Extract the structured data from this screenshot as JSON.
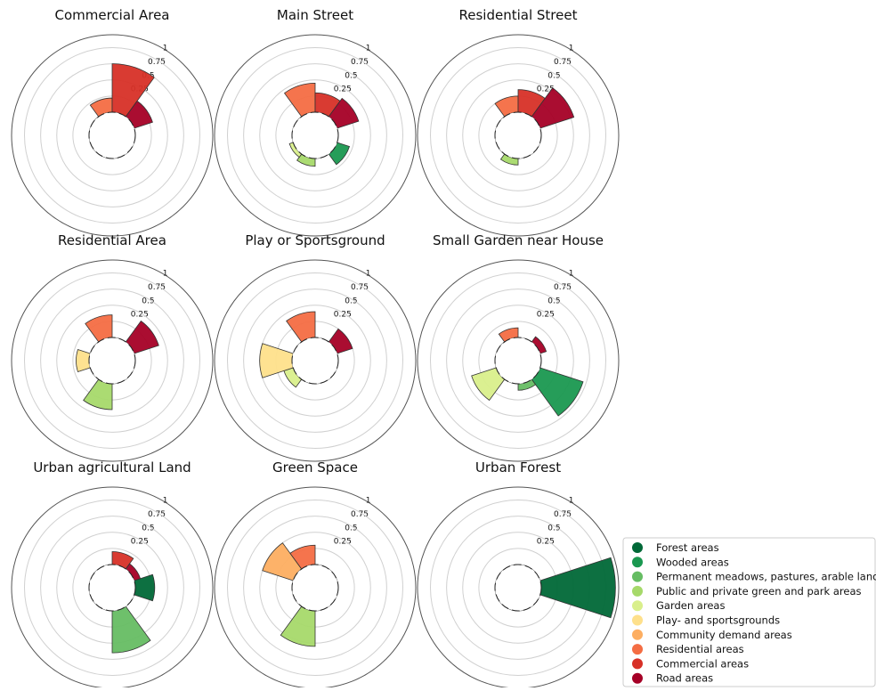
{
  "chart_data": [
    {
      "type": "polar_bar",
      "title": "Commercial Area",
      "values": [
        0,
        0,
        0,
        0,
        0,
        0,
        0,
        0.22,
        0.75,
        0.3
      ],
      "rlim": [
        0,
        1.2
      ],
      "rticks": [
        0.25,
        0.5,
        0.75,
        1
      ]
    },
    {
      "type": "polar_bar",
      "title": "Main Street",
      "values": [
        0,
        0.2,
        0,
        0.12,
        0.06,
        0,
        0,
        0.45,
        0.3,
        0.35
      ],
      "rlim": [
        0,
        1.2
      ],
      "rticks": [
        0.25,
        0.5,
        0.75,
        1
      ]
    },
    {
      "type": "polar_bar",
      "title": "Residential Street",
      "values": [
        0,
        0,
        0,
        0.1,
        0,
        0,
        0,
        0.25,
        0.35,
        0.55
      ],
      "rlim": [
        0,
        1.2
      ],
      "rticks": [
        0.25,
        0.5,
        0.75,
        1
      ]
    },
    {
      "type": "polar_bar",
      "title": "Residential Area",
      "values": [
        0,
        0,
        0,
        0.4,
        0,
        0.2,
        0,
        0.35,
        0,
        0.4
      ],
      "rlim": [
        0,
        1.2
      ],
      "rticks": [
        0.25,
        0.5,
        0.75,
        1
      ]
    },
    {
      "type": "polar_bar",
      "title": "Play or Sportsground",
      "values": [
        0,
        0,
        0,
        0,
        0.15,
        0.5,
        0,
        0.4,
        0,
        0.25
      ],
      "rlim": [
        0,
        1.2
      ],
      "rticks": [
        0.25,
        0.5,
        0.75,
        1
      ]
    },
    {
      "type": "polar_bar",
      "title": "Small Garden near House",
      "values": [
        0,
        0.7,
        0.1,
        0,
        0.4,
        0,
        0,
        0.15,
        0,
        0.1
      ],
      "rlim": [
        0,
        1.2
      ],
      "rticks": [
        0.25,
        0.5,
        0.75,
        1
      ]
    },
    {
      "type": "polar_bar",
      "title": "Urban agricultural Land",
      "values": [
        0.3,
        0,
        0.65,
        0,
        0,
        0,
        0,
        0,
        0.2,
        0.1
      ],
      "rlim": [
        0,
        1.2
      ],
      "rticks": [
        0.25,
        0.5,
        0.75,
        1
      ]
    },
    {
      "type": "polar_bar",
      "title": "Green Space",
      "values": [
        0,
        0,
        0,
        0.55,
        0,
        0,
        0.5,
        0.3,
        0,
        0
      ],
      "rlim": [
        0,
        1.2
      ],
      "rticks": [
        0.25,
        0.5,
        0.75,
        1
      ]
    },
    {
      "type": "polar_bar",
      "title": "Urban Forest",
      "values": [
        1.15,
        0,
        0,
        0,
        0,
        0,
        0,
        0,
        0,
        0
      ],
      "rlim": [
        0,
        1.2
      ],
      "rticks": [
        0.25,
        0.5,
        0.75,
        1
      ]
    }
  ],
  "legend": {
    "labels": [
      "Forest areas",
      "Wooded areas",
      "Permanent meadows, pastures, arable land",
      "Public and private green and park areas",
      "Garden areas",
      "Play- and sportsgrounds",
      "Community demand areas",
      "Residential areas",
      "Commercial areas",
      "Road areas"
    ],
    "colors": [
      "#006837",
      "#1a9850",
      "#66bd63",
      "#a6d96a",
      "#d9ef8b",
      "#fee08b",
      "#fdae61",
      "#f46d43",
      "#d73027",
      "#a50026"
    ]
  }
}
